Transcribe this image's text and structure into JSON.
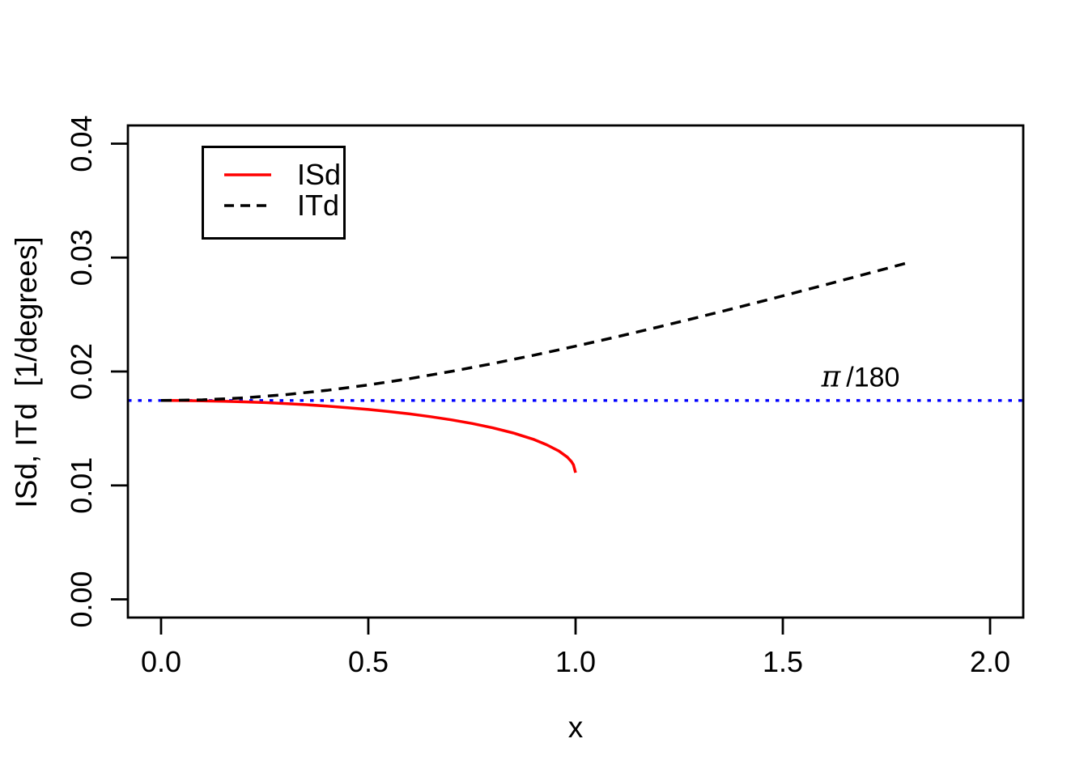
{
  "figure": {
    "background": "#ffffff"
  },
  "chart_data": {
    "type": "line",
    "title": "",
    "xlabel": "x",
    "ylabel": "ISd, ITd  [1/degrees]",
    "xlim": [
      0,
      2
    ],
    "ylim": [
      0,
      0.04
    ],
    "grid": false,
    "legend_position": "top-left",
    "x_ticks": {
      "values": [
        0,
        0.5,
        1.0,
        1.5,
        2.0
      ],
      "labels": [
        "0.0",
        "0.5",
        "1.0",
        "1.5",
        "2.0"
      ]
    },
    "y_ticks": {
      "values": [
        0,
        0.01,
        0.02,
        0.03,
        0.04
      ],
      "labels": [
        "0.00",
        "0.01",
        "0.02",
        "0.03",
        "0.04"
      ]
    },
    "series": [
      {
        "name": "ISd",
        "color": "#ff0000",
        "style": "solid",
        "x": [
          0,
          0.05,
          0.1,
          0.15,
          0.2,
          0.25,
          0.3,
          0.35,
          0.4,
          0.45,
          0.5,
          0.55,
          0.6,
          0.65,
          0.7,
          0.75,
          0.8,
          0.85,
          0.9,
          0.93,
          0.96,
          0.98,
          0.99,
          0.995,
          1.0
        ],
        "y": [
          0.0174533,
          0.017446,
          0.0174241,
          0.0173874,
          0.0173356,
          0.0172681,
          0.0171845,
          0.0170837,
          0.0169647,
          0.0168264,
          0.0166667,
          0.0164833,
          0.0162734,
          0.0160329,
          0.0157562,
          0.0154351,
          0.0150573,
          0.0146018,
          0.0140278,
          0.013571,
          0.0130187,
          0.0124807,
          0.0120894,
          0.0118067,
          0.0111111
        ]
      },
      {
        "name": "ITd",
        "color": "#000000",
        "style": "dashed",
        "x": [
          0,
          0.1,
          0.2,
          0.3,
          0.4,
          0.5,
          0.6,
          0.7,
          0.8,
          0.9,
          1.0,
          1.1,
          1.2,
          1.3,
          1.4,
          1.5,
          1.6,
          1.7,
          1.8
        ],
        "y": [
          0.0174533,
          0.0175113,
          0.0176836,
          0.0179649,
          0.0183475,
          0.0188218,
          0.0193776,
          0.0200047,
          0.0206934,
          0.0214352,
          0.0222222,
          0.0230481,
          0.023907,
          0.0247943,
          0.0257059,
          0.0266383,
          0.0275887,
          0.0285548,
          0.0295346
        ]
      }
    ],
    "reference_line": {
      "value": 0.0174533,
      "color": "#0000ff",
      "style": "dotted",
      "label": "π /180",
      "symbol": "π",
      "rest": "/180",
      "label_x": 1.69,
      "label_y": 0.0196
    },
    "axis_color": "#000000",
    "text_color": "#000000"
  }
}
